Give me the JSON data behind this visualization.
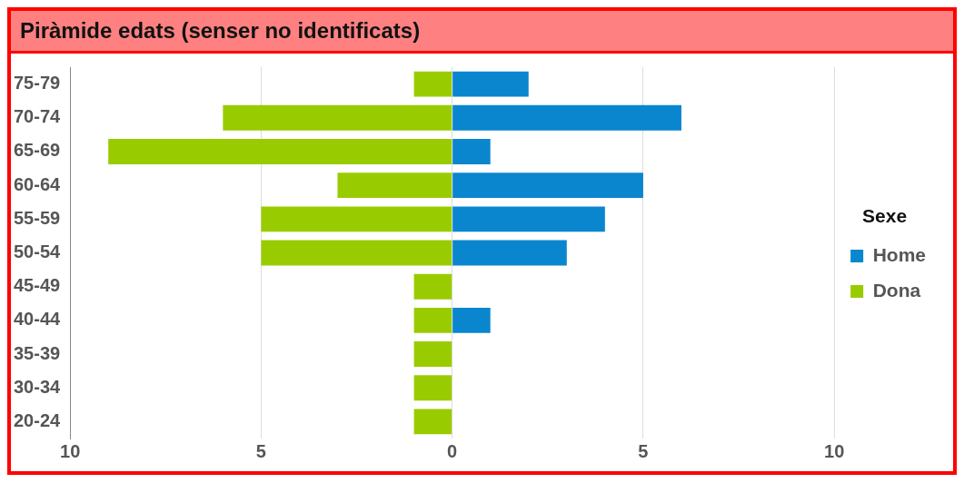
{
  "chart_data": {
    "type": "bar",
    "title": "Piràmide edats (senser no identificats)",
    "orientation": "horizontal",
    "stacked": true,
    "categories": [
      "75-79",
      "70-74",
      "65-69",
      "60-64",
      "55-59",
      "50-54",
      "45-49",
      "40-44",
      "35-39",
      "30-34",
      "20-24"
    ],
    "series": [
      {
        "name": "Home",
        "color": "#0a86cf",
        "values": [
          2,
          6,
          1,
          5,
          4,
          3,
          0,
          1,
          0,
          0,
          0
        ]
      },
      {
        "name": "Dona",
        "color": "#99cc00",
        "values": [
          -1,
          -6,
          -9,
          -3,
          -5,
          -5,
          -1,
          -1,
          -1,
          -1,
          -1
        ]
      }
    ],
    "xlim": [
      -10,
      10
    ],
    "xticks": [
      {
        "value": -10,
        "label": "10"
      },
      {
        "value": -5,
        "label": "5"
      },
      0,
      5,
      10
    ],
    "grid": "x",
    "legend": "right",
    "legend_title": "Sexe"
  }
}
